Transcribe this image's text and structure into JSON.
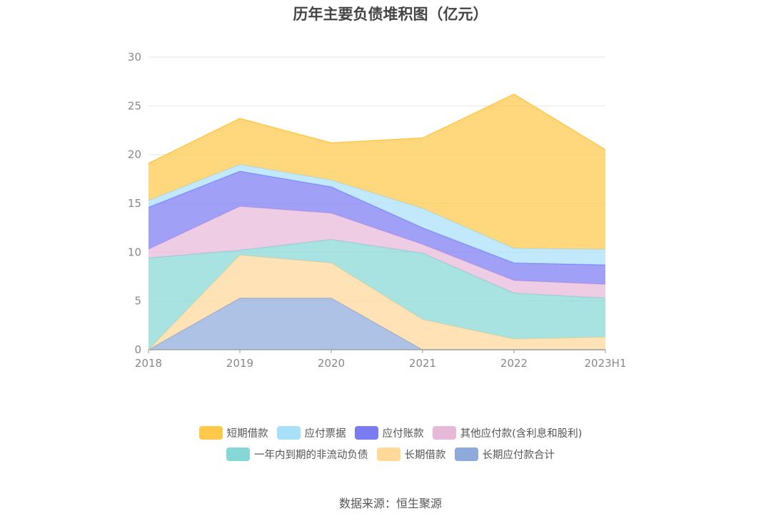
{
  "chart_data": {
    "type": "area",
    "stacked": true,
    "title": "历年主要负债堆积图（亿元）",
    "categories": [
      "2018",
      "2019",
      "2020",
      "2021",
      "2022",
      "2023H1"
    ],
    "ylim": [
      0,
      30
    ],
    "yticks": [
      "0",
      "5",
      "10",
      "15",
      "20",
      "25",
      "30"
    ],
    "grid": true,
    "legend_position": "bottom",
    "series": [
      {
        "name": "长期应付款合计",
        "color": "#8eaadb",
        "values": [
          0,
          5.3,
          5.3,
          0,
          0,
          0
        ]
      },
      {
        "name": "长期借款",
        "color": "#ffd89a",
        "values": [
          0,
          4.4,
          3.6,
          3.1,
          1.1,
          1.3
        ]
      },
      {
        "name": "一年内到期的非流动负债",
        "color": "#86d8d6",
        "values": [
          9.4,
          0.5,
          2.4,
          6.8,
          4.7,
          4.0
        ]
      },
      {
        "name": "其他应付款(含利息和股利)",
        "color": "#e8b8d9",
        "values": [
          0.9,
          4.5,
          2.7,
          0.9,
          1.3,
          1.4
        ]
      },
      {
        "name": "应付账款",
        "color": "#7b7cf4",
        "values": [
          4.3,
          3.6,
          2.7,
          1.7,
          1.8,
          2.0
        ]
      },
      {
        "name": "应付票据",
        "color": "#a9e0f9",
        "values": [
          0.7,
          0.7,
          0.7,
          2.0,
          1.5,
          1.6
        ]
      },
      {
        "name": "短期借款",
        "color": "#ffc84a",
        "values": [
          3.8,
          4.7,
          3.8,
          7.2,
          15.8,
          10.2
        ]
      }
    ]
  },
  "legend": {
    "rows": [
      [
        {
          "label": "短期借款",
          "color": "#ffc84a"
        },
        {
          "label": "应付票据",
          "color": "#a9e0f9"
        },
        {
          "label": "应付账款",
          "color": "#7b7cf4"
        },
        {
          "label": "其他应付款(含利息和股利)",
          "color": "#e8b8d9"
        }
      ],
      [
        {
          "label": "一年内到期的非流动负债",
          "color": "#86d8d6"
        },
        {
          "label": "长期借款",
          "color": "#ffd89a"
        },
        {
          "label": "长期应付款合计",
          "color": "#8eaadb"
        }
      ]
    ]
  },
  "source_text": "数据来源：恒生聚源"
}
